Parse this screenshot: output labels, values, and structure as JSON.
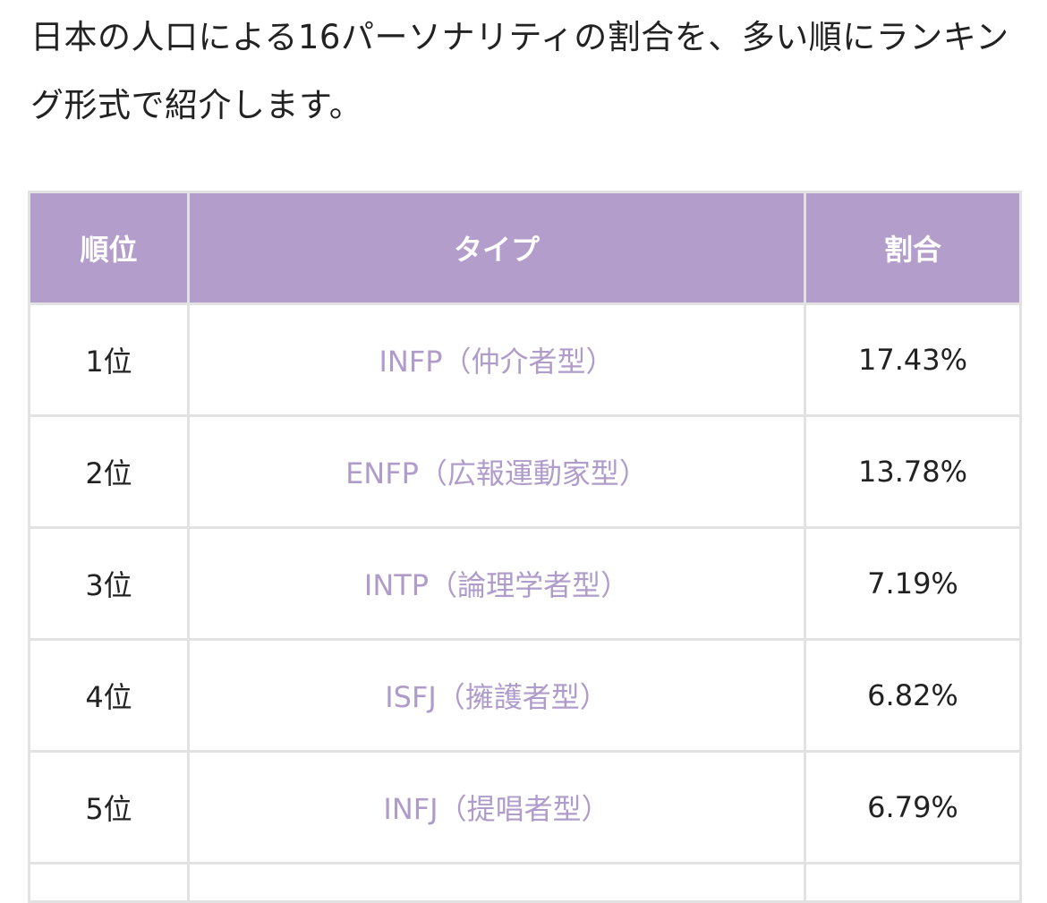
{
  "intro": "日本の人口による16パーソナリティの割合を、多い順にランキング形式で紹介します。",
  "table": {
    "header": [
      "順位",
      "タイプ",
      "割合"
    ],
    "rows": [
      [
        "1位",
        "INFP（仲介者型）",
        "17.43%"
      ],
      [
        "2位",
        "ENFP（広報運動家型）",
        "13.78%"
      ],
      [
        "3位",
        "INTP（論理学者型）",
        "7.19%"
      ],
      [
        "4位",
        "ISFJ（擁護者型）",
        "6.82%"
      ],
      [
        "5位",
        "INFJ（提唱者型）",
        "6.79%"
      ]
    ]
  }
}
